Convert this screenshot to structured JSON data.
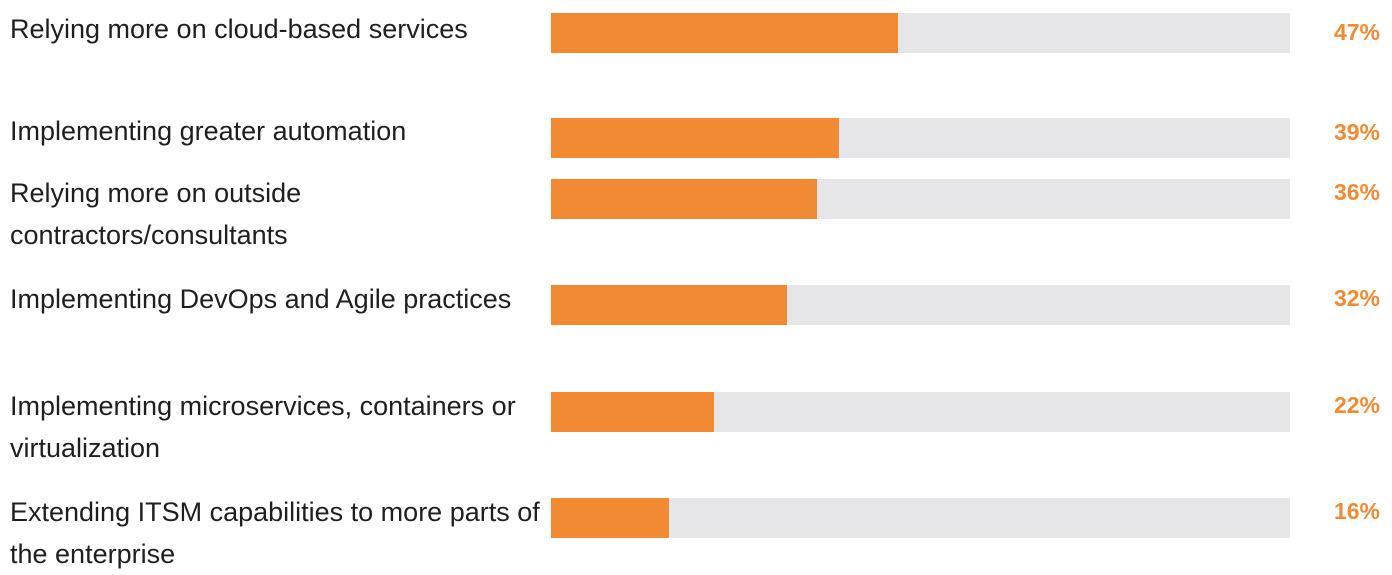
{
  "colors": {
    "bar": "#f28a33",
    "track": "#e6e6e8",
    "value_text": "#f28a33",
    "label_text": "#1f1f1f"
  },
  "chart_data": {
    "type": "bar",
    "orientation": "horizontal",
    "categories": [
      "Relying more on cloud-based services",
      "Implementing greater automation",
      "Relying more on outside contractors/consultants",
      "Implementing DevOps and Agile practices",
      "Implementing microservices, containers or virtualization",
      "Extending ITSM capabilities to more parts of the enterprise"
    ],
    "values": [
      47,
      39,
      36,
      32,
      22,
      16
    ],
    "value_labels": [
      "47%",
      "39%",
      "36%",
      "32%",
      "22%",
      "16%"
    ],
    "xlim": [
      0,
      100
    ],
    "grid": false,
    "legend": "none"
  }
}
